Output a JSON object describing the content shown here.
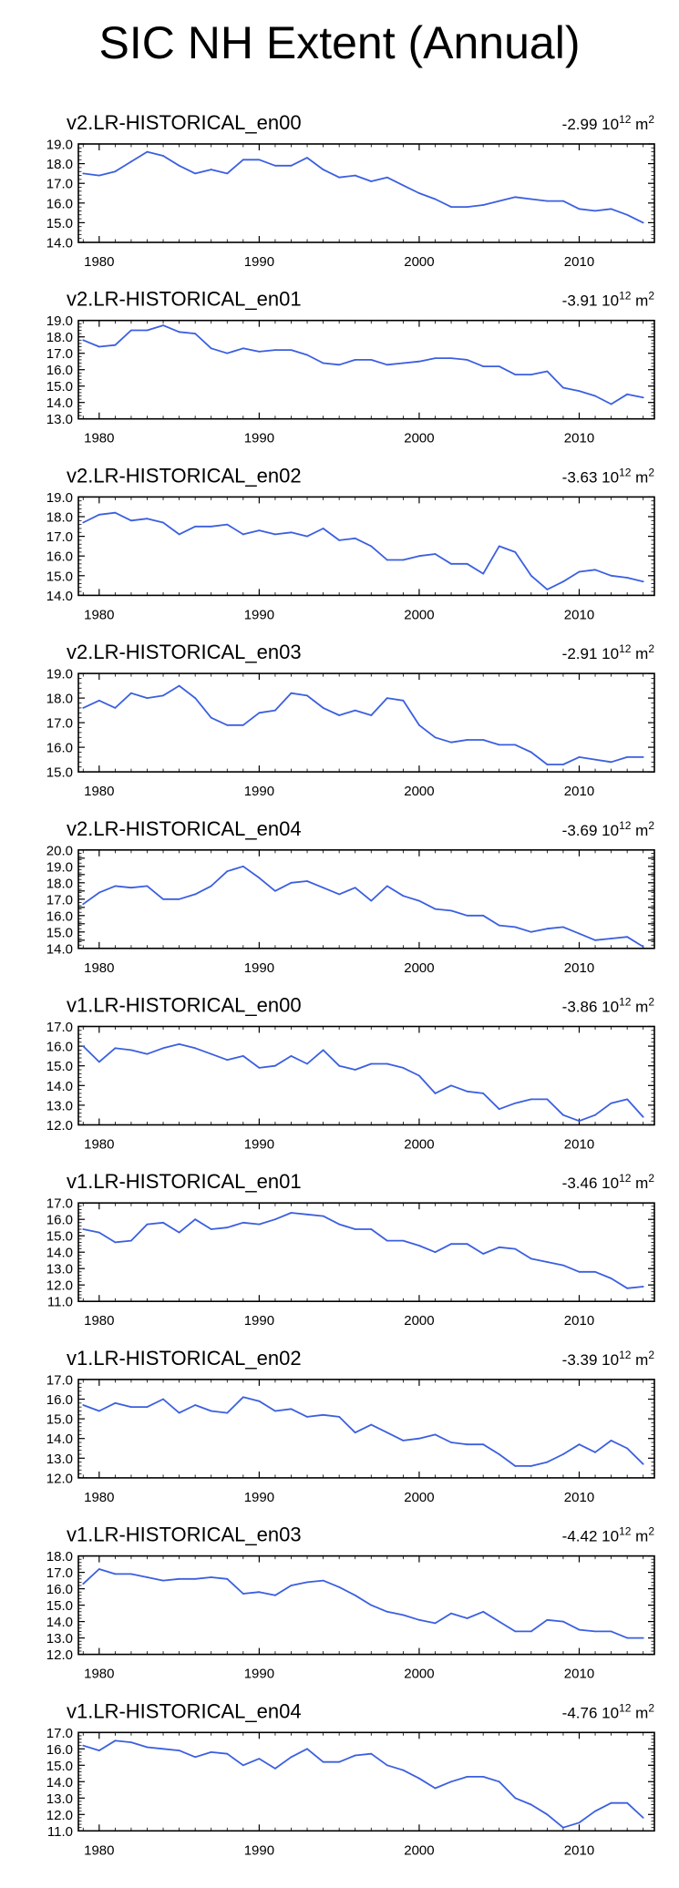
{
  "page_title": "SIC NH Extent (Annual)",
  "series_color": "#3b5fe0",
  "x_axis": {
    "min": 1978.7,
    "max": 2014.7,
    "ticks": [
      1980,
      1990,
      2000,
      2010
    ],
    "tick_labels": [
      "1980",
      "1990",
      "2000",
      "2010"
    ]
  },
  "chart_data": [
    {
      "type": "line",
      "title": "v2.LR-HISTORICAL_en00",
      "trend_value": "-2.99",
      "trend_unit_base": "10",
      "trend_unit_exp": "12",
      "trend_unit_tail": "m",
      "trend_unit_sq": "2",
      "ylim": [
        14.0,
        19.0
      ],
      "yticks": [
        14.0,
        15.0,
        16.0,
        17.0,
        18.0,
        19.0
      ],
      "ytick_labels": [
        "14.0",
        "15.0",
        "16.0",
        "17.0",
        "18.0",
        "19.0"
      ],
      "x": [
        1979,
        1980,
        1981,
        1982,
        1983,
        1984,
        1985,
        1986,
        1987,
        1988,
        1989,
        1990,
        1991,
        1992,
        1993,
        1994,
        1995,
        1996,
        1997,
        1998,
        1999,
        2000,
        2001,
        2002,
        2003,
        2004,
        2005,
        2006,
        2007,
        2008,
        2009,
        2010,
        2011,
        2012,
        2013,
        2014
      ],
      "values": [
        17.5,
        17.4,
        17.6,
        18.1,
        18.6,
        18.4,
        17.9,
        17.5,
        17.7,
        17.5,
        18.2,
        18.2,
        17.9,
        17.9,
        18.3,
        17.7,
        17.3,
        17.4,
        17.1,
        17.3,
        16.9,
        16.5,
        16.2,
        15.8,
        15.8,
        15.9,
        16.1,
        16.3,
        16.2,
        16.1,
        16.1,
        15.7,
        15.6,
        15.7,
        15.4,
        15.0
      ]
    },
    {
      "type": "line",
      "title": "v2.LR-HISTORICAL_en01",
      "trend_value": "-3.91",
      "trend_unit_base": "10",
      "trend_unit_exp": "12",
      "trend_unit_tail": "m",
      "trend_unit_sq": "2",
      "ylim": [
        13.0,
        19.0
      ],
      "yticks": [
        13.0,
        14.0,
        15.0,
        16.0,
        17.0,
        18.0,
        19.0
      ],
      "ytick_labels": [
        "13.0",
        "14.0",
        "15.0",
        "16.0",
        "17.0",
        "18.0",
        "19.0"
      ],
      "x": [
        1979,
        1980,
        1981,
        1982,
        1983,
        1984,
        1985,
        1986,
        1987,
        1988,
        1989,
        1990,
        1991,
        1992,
        1993,
        1994,
        1995,
        1996,
        1997,
        1998,
        1999,
        2000,
        2001,
        2002,
        2003,
        2004,
        2005,
        2006,
        2007,
        2008,
        2009,
        2010,
        2011,
        2012,
        2013,
        2014
      ],
      "values": [
        17.8,
        17.4,
        17.5,
        18.4,
        18.4,
        18.7,
        18.3,
        18.2,
        17.3,
        17.0,
        17.3,
        17.1,
        17.2,
        17.2,
        16.9,
        16.4,
        16.3,
        16.6,
        16.6,
        16.3,
        16.4,
        16.5,
        16.7,
        16.7,
        16.6,
        16.2,
        16.2,
        15.7,
        15.7,
        15.9,
        14.9,
        14.7,
        14.4,
        13.9,
        14.5,
        14.3
      ]
    },
    {
      "type": "line",
      "title": "v2.LR-HISTORICAL_en02",
      "trend_value": "-3.63",
      "trend_unit_base": "10",
      "trend_unit_exp": "12",
      "trend_unit_tail": "m",
      "trend_unit_sq": "2",
      "ylim": [
        14.0,
        19.0
      ],
      "yticks": [
        14.0,
        15.0,
        16.0,
        17.0,
        18.0,
        19.0
      ],
      "ytick_labels": [
        "14.0",
        "15.0",
        "16.0",
        "17.0",
        "18.0",
        "19.0"
      ],
      "x": [
        1979,
        1980,
        1981,
        1982,
        1983,
        1984,
        1985,
        1986,
        1987,
        1988,
        1989,
        1990,
        1991,
        1992,
        1993,
        1994,
        1995,
        1996,
        1997,
        1998,
        1999,
        2000,
        2001,
        2002,
        2003,
        2004,
        2005,
        2006,
        2007,
        2008,
        2009,
        2010,
        2011,
        2012,
        2013,
        2014
      ],
      "values": [
        17.7,
        18.1,
        18.2,
        17.8,
        17.9,
        17.7,
        17.1,
        17.5,
        17.5,
        17.6,
        17.1,
        17.3,
        17.1,
        17.2,
        17.0,
        17.4,
        16.8,
        16.9,
        16.5,
        15.8,
        15.8,
        16.0,
        16.1,
        15.6,
        15.6,
        15.1,
        16.5,
        16.2,
        15.0,
        14.3,
        14.7,
        15.2,
        15.3,
        15.0,
        14.9,
        14.7
      ]
    },
    {
      "type": "line",
      "title": "v2.LR-HISTORICAL_en03",
      "trend_value": "-2.91",
      "trend_unit_base": "10",
      "trend_unit_exp": "12",
      "trend_unit_tail": "m",
      "trend_unit_sq": "2",
      "ylim": [
        15.0,
        19.0
      ],
      "yticks": [
        15.0,
        16.0,
        17.0,
        18.0,
        19.0
      ],
      "ytick_labels": [
        "15.0",
        "16.0",
        "17.0",
        "18.0",
        "19.0"
      ],
      "x": [
        1979,
        1980,
        1981,
        1982,
        1983,
        1984,
        1985,
        1986,
        1987,
        1988,
        1989,
        1990,
        1991,
        1992,
        1993,
        1994,
        1995,
        1996,
        1997,
        1998,
        1999,
        2000,
        2001,
        2002,
        2003,
        2004,
        2005,
        2006,
        2007,
        2008,
        2009,
        2010,
        2011,
        2012,
        2013,
        2014
      ],
      "values": [
        17.6,
        17.9,
        17.6,
        18.2,
        18.0,
        18.1,
        18.5,
        18.0,
        17.2,
        16.9,
        16.9,
        17.4,
        17.5,
        18.2,
        18.1,
        17.6,
        17.3,
        17.5,
        17.3,
        18.0,
        17.9,
        16.9,
        16.4,
        16.2,
        16.3,
        16.3,
        16.1,
        16.1,
        15.8,
        15.3,
        15.3,
        15.6,
        15.5,
        15.4,
        15.6,
        15.6
      ]
    },
    {
      "type": "line",
      "title": "v2.LR-HISTORICAL_en04",
      "trend_value": "-3.69",
      "trend_unit_base": "10",
      "trend_unit_exp": "12",
      "trend_unit_tail": "m",
      "trend_unit_sq": "2",
      "ylim": [
        14.0,
        20.0
      ],
      "yticks": [
        14.0,
        14.5,
        15.0,
        15.5,
        16.0,
        16.5,
        17.0,
        17.5,
        18.0,
        18.5,
        19.0,
        19.5,
        20.0
      ],
      "ytick_labels": [
        "14.0",
        "15.0",
        "16.0",
        "17.0",
        "18.0",
        "19.0",
        "20.0"
      ],
      "ytick_label_values": [
        14.0,
        15.0,
        16.0,
        17.0,
        18.0,
        19.0,
        20.0
      ],
      "x": [
        1979,
        1980,
        1981,
        1982,
        1983,
        1984,
        1985,
        1986,
        1987,
        1988,
        1989,
        1990,
        1991,
        1992,
        1993,
        1994,
        1995,
        1996,
        1997,
        1998,
        1999,
        2000,
        2001,
        2002,
        2003,
        2004,
        2005,
        2006,
        2007,
        2008,
        2009,
        2010,
        2011,
        2012,
        2013,
        2014
      ],
      "values": [
        16.7,
        17.4,
        17.8,
        17.7,
        17.8,
        17.0,
        17.0,
        17.3,
        17.8,
        18.7,
        19.0,
        18.3,
        17.5,
        18.0,
        18.1,
        17.7,
        17.3,
        17.7,
        16.9,
        17.8,
        17.2,
        16.9,
        16.4,
        16.3,
        16.0,
        16.0,
        15.4,
        15.3,
        15.0,
        15.2,
        15.3,
        14.9,
        14.5,
        14.6,
        14.7,
        14.1
      ]
    },
    {
      "type": "line",
      "title": "v1.LR-HISTORICAL_en00",
      "trend_value": "-3.86",
      "trend_unit_base": "10",
      "trend_unit_exp": "12",
      "trend_unit_tail": "m",
      "trend_unit_sq": "2",
      "ylim": [
        12.0,
        17.0
      ],
      "yticks": [
        12.0,
        13.0,
        14.0,
        15.0,
        16.0,
        17.0
      ],
      "ytick_labels": [
        "12.0",
        "13.0",
        "14.0",
        "15.0",
        "16.0",
        "17.0"
      ],
      "x": [
        1979,
        1980,
        1981,
        1982,
        1983,
        1984,
        1985,
        1986,
        1987,
        1988,
        1989,
        1990,
        1991,
        1992,
        1993,
        1994,
        1995,
        1996,
        1997,
        1998,
        1999,
        2000,
        2001,
        2002,
        2003,
        2004,
        2005,
        2006,
        2007,
        2008,
        2009,
        2010,
        2011,
        2012,
        2013,
        2014
      ],
      "values": [
        16.0,
        15.2,
        15.9,
        15.8,
        15.6,
        15.9,
        16.1,
        15.9,
        15.6,
        15.3,
        15.5,
        14.9,
        15.0,
        15.5,
        15.1,
        15.8,
        15.0,
        14.8,
        15.1,
        15.1,
        14.9,
        14.5,
        13.6,
        14.0,
        13.7,
        13.6,
        12.8,
        13.1,
        13.3,
        13.3,
        12.5,
        12.2,
        12.5,
        13.1,
        13.3,
        12.4
      ]
    },
    {
      "type": "line",
      "title": "v1.LR-HISTORICAL_en01",
      "trend_value": "-3.46",
      "trend_unit_base": "10",
      "trend_unit_exp": "12",
      "trend_unit_tail": "m",
      "trend_unit_sq": "2",
      "ylim": [
        11.0,
        17.0
      ],
      "yticks": [
        11.0,
        12.0,
        13.0,
        14.0,
        15.0,
        16.0,
        17.0
      ],
      "ytick_labels": [
        "11.0",
        "12.0",
        "13.0",
        "14.0",
        "15.0",
        "16.0",
        "17.0"
      ],
      "x": [
        1979,
        1980,
        1981,
        1982,
        1983,
        1984,
        1985,
        1986,
        1987,
        1988,
        1989,
        1990,
        1991,
        1992,
        1993,
        1994,
        1995,
        1996,
        1997,
        1998,
        1999,
        2000,
        2001,
        2002,
        2003,
        2004,
        2005,
        2006,
        2007,
        2008,
        2009,
        2010,
        2011,
        2012,
        2013,
        2014
      ],
      "values": [
        15.4,
        15.2,
        14.6,
        14.7,
        15.7,
        15.8,
        15.2,
        16.0,
        15.4,
        15.5,
        15.8,
        15.7,
        16.0,
        16.4,
        16.3,
        16.2,
        15.7,
        15.4,
        15.4,
        14.7,
        14.7,
        14.4,
        14.0,
        14.5,
        14.5,
        13.9,
        14.3,
        14.2,
        13.6,
        13.4,
        13.2,
        12.8,
        12.8,
        12.4,
        11.8,
        11.9
      ]
    },
    {
      "type": "line",
      "title": "v1.LR-HISTORICAL_en02",
      "trend_value": "-3.39",
      "trend_unit_base": "10",
      "trend_unit_exp": "12",
      "trend_unit_tail": "m",
      "trend_unit_sq": "2",
      "ylim": [
        12.0,
        17.0
      ],
      "yticks": [
        12.0,
        13.0,
        14.0,
        15.0,
        16.0,
        17.0
      ],
      "ytick_labels": [
        "12.0",
        "13.0",
        "14.0",
        "15.0",
        "16.0",
        "17.0"
      ],
      "x": [
        1979,
        1980,
        1981,
        1982,
        1983,
        1984,
        1985,
        1986,
        1987,
        1988,
        1989,
        1990,
        1991,
        1992,
        1993,
        1994,
        1995,
        1996,
        1997,
        1998,
        1999,
        2000,
        2001,
        2002,
        2003,
        2004,
        2005,
        2006,
        2007,
        2008,
        2009,
        2010,
        2011,
        2012,
        2013,
        2014
      ],
      "values": [
        15.7,
        15.4,
        15.8,
        15.6,
        15.6,
        16.0,
        15.3,
        15.7,
        15.4,
        15.3,
        16.1,
        15.9,
        15.4,
        15.5,
        15.1,
        15.2,
        15.1,
        14.3,
        14.7,
        14.3,
        13.9,
        14.0,
        14.2,
        13.8,
        13.7,
        13.7,
        13.2,
        12.6,
        12.6,
        12.8,
        13.2,
        13.7,
        13.3,
        13.9,
        13.5,
        12.7
      ]
    },
    {
      "type": "line",
      "title": "v1.LR-HISTORICAL_en03",
      "trend_value": "-4.42",
      "trend_unit_base": "10",
      "trend_unit_exp": "12",
      "trend_unit_tail": "m",
      "trend_unit_sq": "2",
      "ylim": [
        12.0,
        18.0
      ],
      "yticks": [
        12.0,
        13.0,
        14.0,
        15.0,
        16.0,
        17.0,
        18.0
      ],
      "ytick_labels": [
        "12.0",
        "13.0",
        "14.0",
        "15.0",
        "16.0",
        "17.0",
        "18.0"
      ],
      "x": [
        1979,
        1980,
        1981,
        1982,
        1983,
        1984,
        1985,
        1986,
        1987,
        1988,
        1989,
        1990,
        1991,
        1992,
        1993,
        1994,
        1995,
        1996,
        1997,
        1998,
        1999,
        2000,
        2001,
        2002,
        2003,
        2004,
        2005,
        2006,
        2007,
        2008,
        2009,
        2010,
        2011,
        2012,
        2013,
        2014
      ],
      "values": [
        16.3,
        17.2,
        16.9,
        16.9,
        16.7,
        16.5,
        16.6,
        16.6,
        16.7,
        16.6,
        15.7,
        15.8,
        15.6,
        16.2,
        16.4,
        16.5,
        16.1,
        15.6,
        15.0,
        14.6,
        14.4,
        14.1,
        13.9,
        14.5,
        14.2,
        14.6,
        14.0,
        13.4,
        13.4,
        14.1,
        14.0,
        13.5,
        13.4,
        13.4,
        13.0,
        13.0
      ]
    },
    {
      "type": "line",
      "title": "v1.LR-HISTORICAL_en04",
      "trend_value": "-4.76",
      "trend_unit_base": "10",
      "trend_unit_exp": "12",
      "trend_unit_tail": "m",
      "trend_unit_sq": "2",
      "ylim": [
        11.0,
        17.0
      ],
      "yticks": [
        11.0,
        12.0,
        13.0,
        14.0,
        15.0,
        16.0,
        17.0
      ],
      "ytick_labels": [
        "11.0",
        "12.0",
        "13.0",
        "14.0",
        "15.0",
        "16.0",
        "17.0"
      ],
      "x": [
        1979,
        1980,
        1981,
        1982,
        1983,
        1984,
        1985,
        1986,
        1987,
        1988,
        1989,
        1990,
        1991,
        1992,
        1993,
        1994,
        1995,
        1996,
        1997,
        1998,
        1999,
        2000,
        2001,
        2002,
        2003,
        2004,
        2005,
        2006,
        2007,
        2008,
        2009,
        2010,
        2011,
        2012,
        2013,
        2014
      ],
      "values": [
        16.2,
        15.9,
        16.5,
        16.4,
        16.1,
        16.0,
        15.9,
        15.5,
        15.8,
        15.7,
        15.0,
        15.4,
        14.8,
        15.5,
        16.0,
        15.2,
        15.2,
        15.6,
        15.7,
        15.0,
        14.7,
        14.2,
        13.6,
        14.0,
        14.3,
        14.3,
        14.0,
        13.0,
        12.6,
        12.0,
        11.2,
        11.5,
        12.2,
        12.7,
        12.7,
        11.8
      ]
    }
  ]
}
